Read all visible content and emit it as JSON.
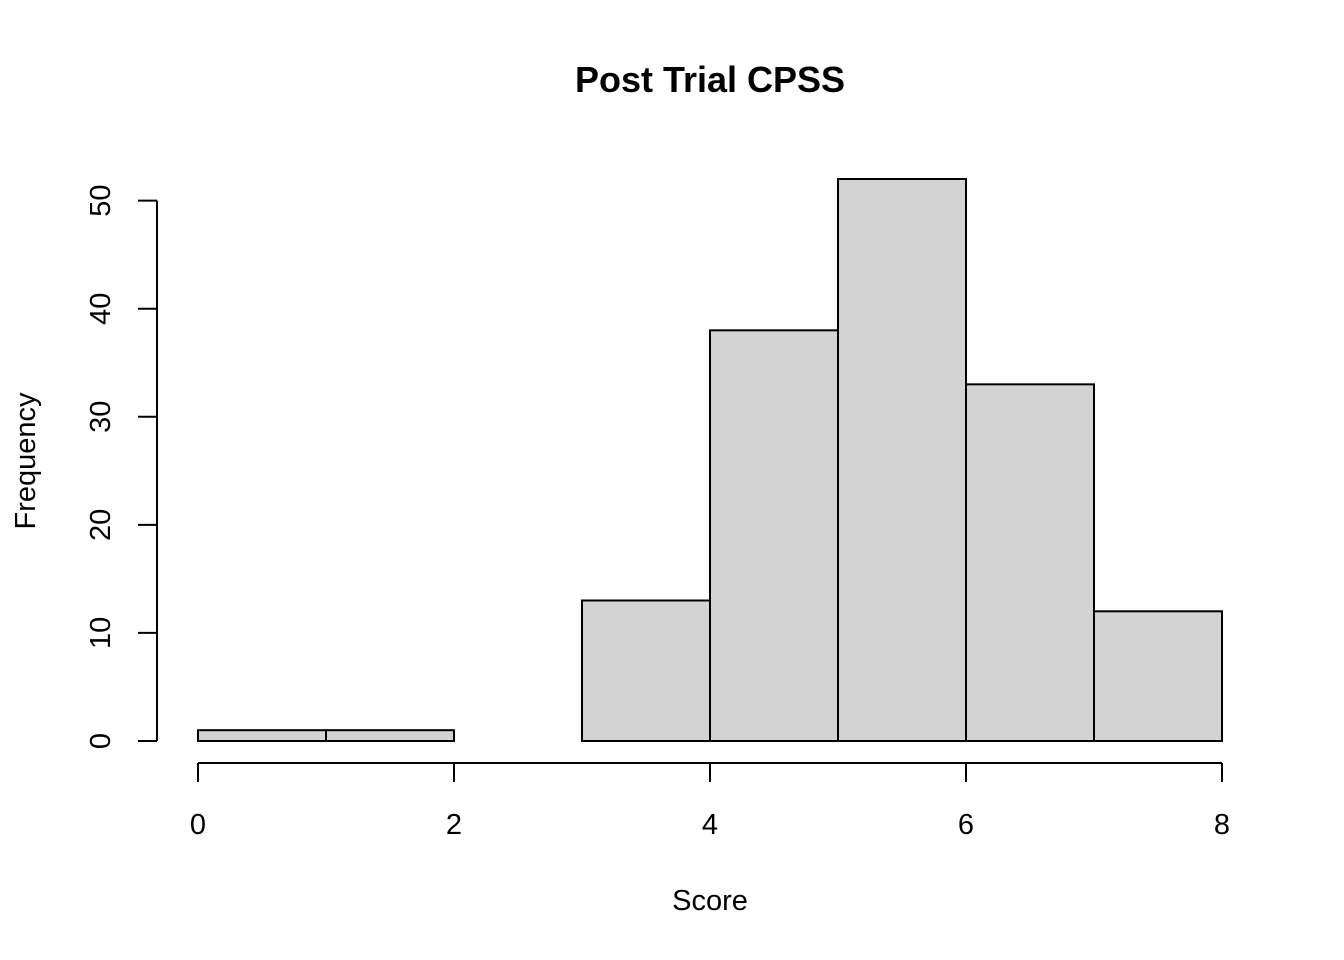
{
  "chart_data": {
    "type": "bar",
    "title": "Post Trial CPSS",
    "xlabel": "Score",
    "ylabel": "Frequency",
    "bins": [
      {
        "x0": 0,
        "x1": 1,
        "count": 1
      },
      {
        "x0": 1,
        "x1": 2,
        "count": 1
      },
      {
        "x0": 2,
        "x1": 3,
        "count": 0
      },
      {
        "x0": 3,
        "x1": 4,
        "count": 13
      },
      {
        "x0": 4,
        "x1": 5,
        "count": 38
      },
      {
        "x0": 5,
        "x1": 6,
        "count": 52
      },
      {
        "x0": 6,
        "x1": 7,
        "count": 33
      },
      {
        "x0": 7,
        "x1": 8,
        "count": 12
      }
    ],
    "xlim": [
      0,
      8
    ],
    "ylim": [
      0,
      52
    ],
    "x_ticks": [
      0,
      2,
      4,
      6,
      8
    ],
    "x_tick_labels": [
      "0",
      "2",
      "4",
      "6",
      "8"
    ],
    "y_ticks": [
      0,
      10,
      20,
      30,
      40,
      50
    ],
    "y_tick_labels": [
      "0",
      "10",
      "20",
      "30",
      "40",
      "50"
    ],
    "bar_color": "#d3d3d3",
    "grid": false,
    "legend": "none"
  }
}
